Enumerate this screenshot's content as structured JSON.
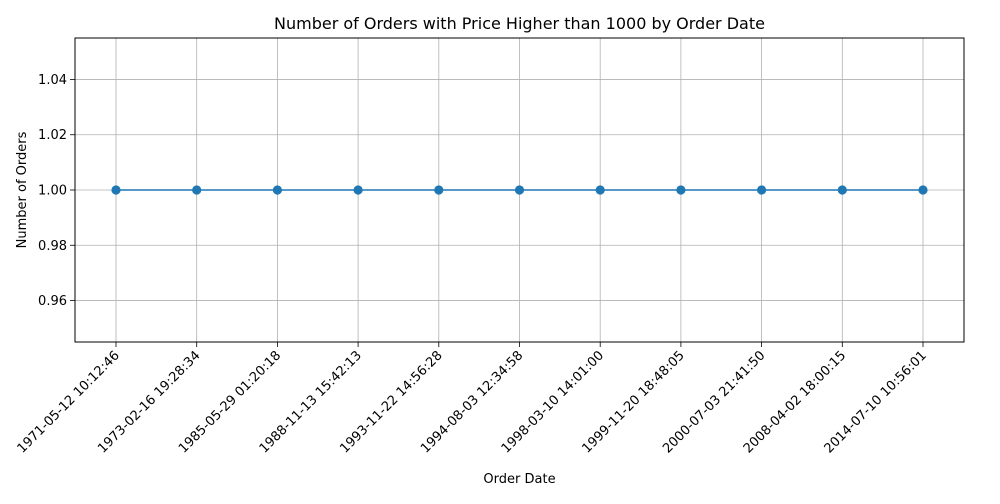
{
  "chart_data": {
    "type": "line",
    "title": "Number of Orders with Price Higher than 1000 by Order Date",
    "xlabel": "Order Date",
    "ylabel": "Number of Orders",
    "categories": [
      "1971-05-12 10:12:46",
      "1973-02-16 19:28:34",
      "1985-05-29 01:20:18",
      "1988-11-13 15:42:13",
      "1993-11-22 14:56:28",
      "1994-08-03 12:34:58",
      "1998-03-10 14:01:00",
      "1999-11-20 18:48:05",
      "2000-07-03 21:41:50",
      "2008-04-02 18:00:15",
      "2014-07-10 10:56:01"
    ],
    "series": [
      {
        "values": [
          1,
          1,
          1,
          1,
          1,
          1,
          1,
          1,
          1,
          1,
          1
        ],
        "color": "#1f77b4",
        "marker": "circle"
      }
    ],
    "ylim": [
      0.945,
      1.055
    ],
    "yticks": [
      "0.96",
      "0.98",
      "1.00",
      "1.02",
      "1.04"
    ],
    "grid": true,
    "legend": "none"
  }
}
